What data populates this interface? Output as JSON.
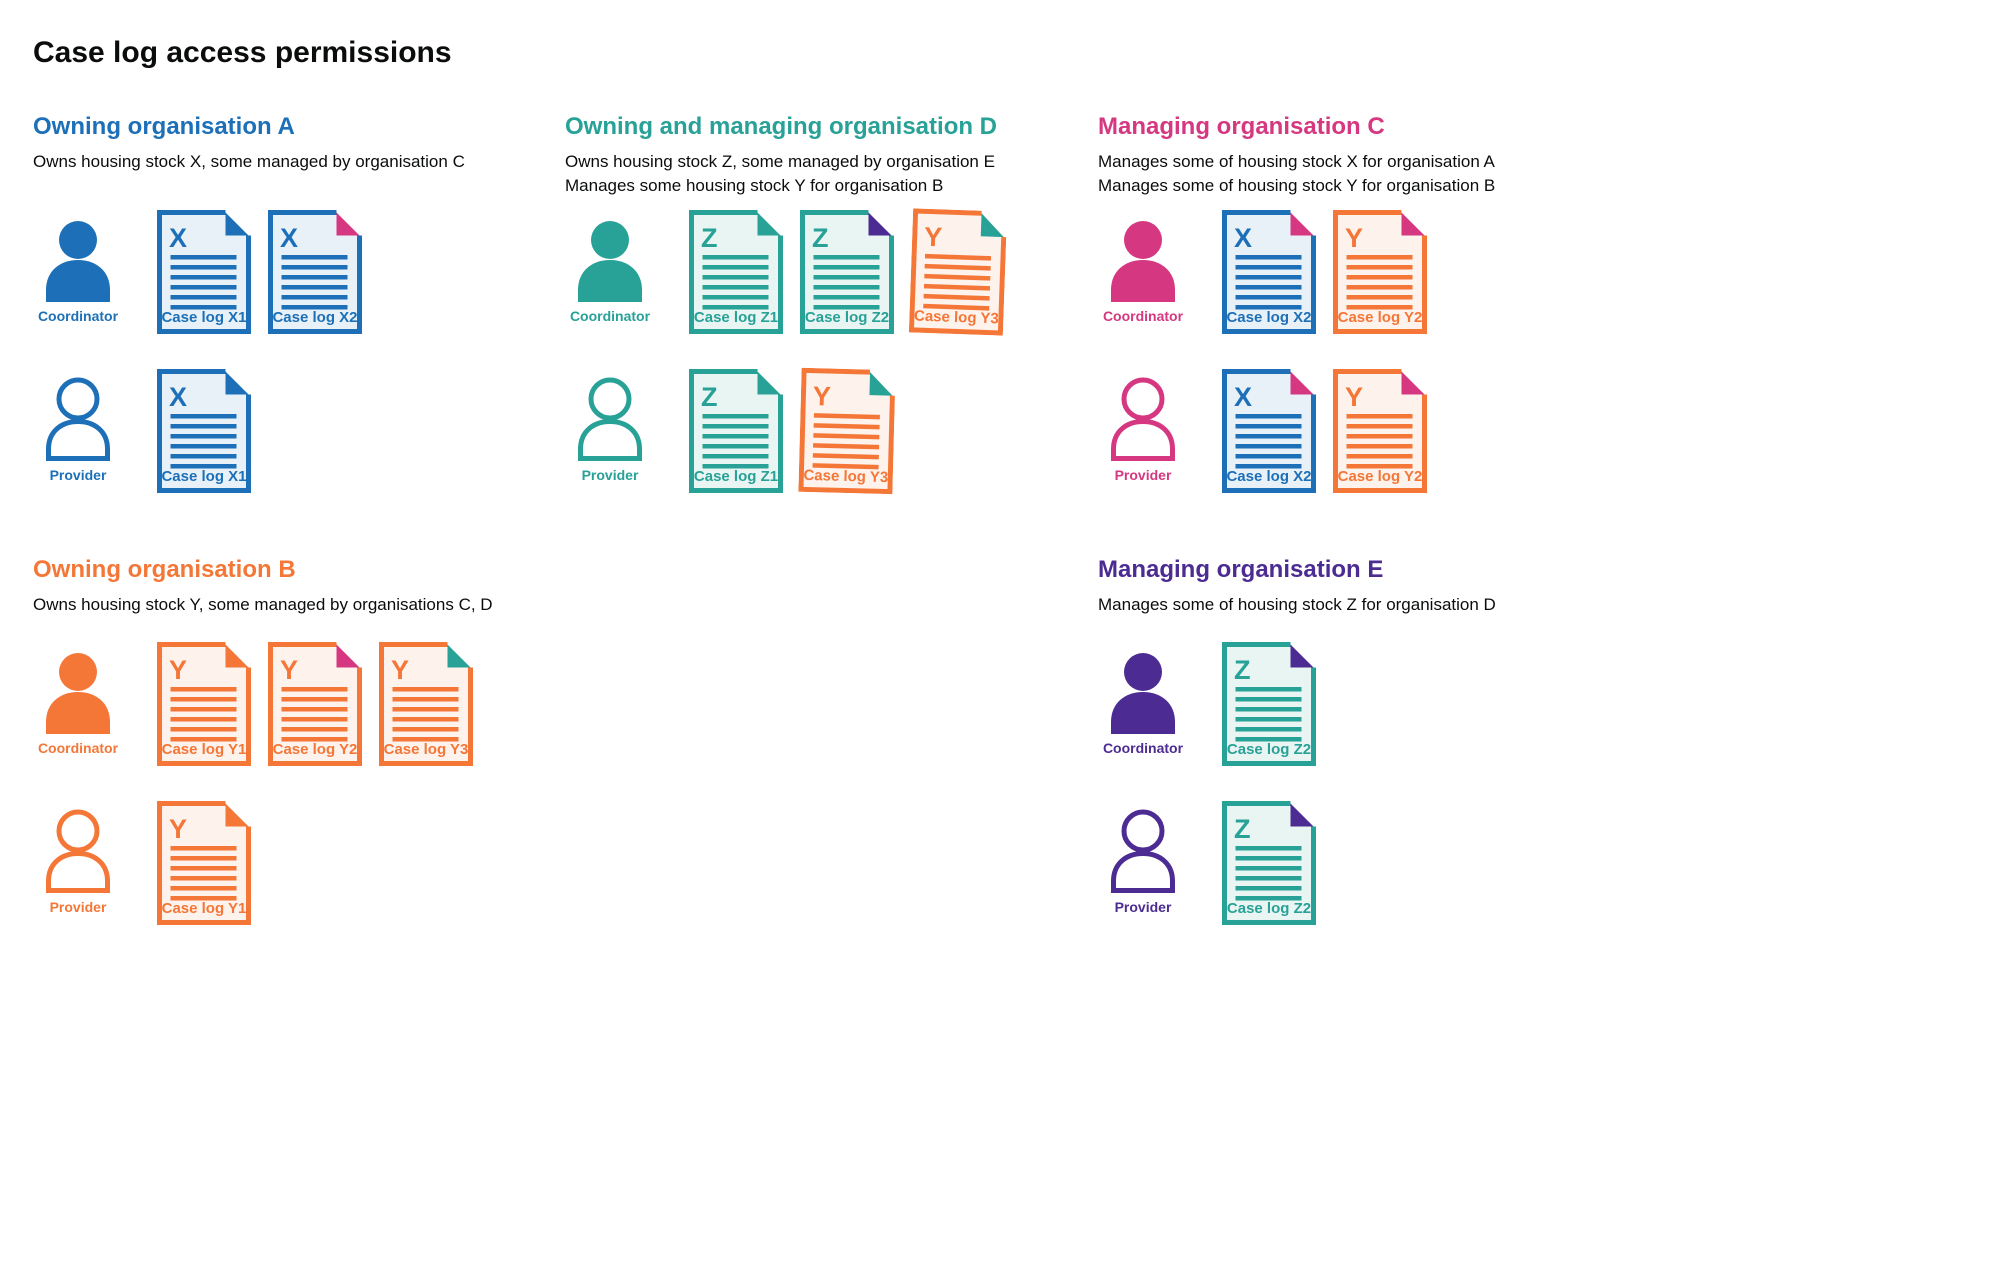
{
  "title": "Case log access permissions",
  "palette": {
    "blue": {
      "main": "#1d70b8",
      "light": "#e8f1f8"
    },
    "teal": {
      "main": "#28a197",
      "light": "#e9f5f3"
    },
    "orange": {
      "main": "#f47738",
      "light": "#fdf2ec"
    },
    "pink": {
      "main": "#d53880",
      "light": "#fbebf2"
    },
    "purple": {
      "main": "#4c2c92",
      "light": "#ece9f4"
    }
  },
  "sections": [
    {
      "id": "owning-organisation-a",
      "heading": "Owning organisation A",
      "color": "blue",
      "grid": {
        "col": 1,
        "row": 1
      },
      "description": [
        "Owns housing stock X, some managed by organisation C"
      ],
      "rows": [
        {
          "role": "Coordinator",
          "person": "filled",
          "docs": [
            {
              "letter": "X",
              "label": "Case log X1",
              "color": "blue",
              "fold": "blue"
            },
            {
              "letter": "X",
              "label": "Case log X2",
              "color": "blue",
              "fold": "pink"
            }
          ]
        },
        {
          "role": "Provider",
          "person": "outline",
          "docs": [
            {
              "letter": "X",
              "label": "Case log X1",
              "color": "blue",
              "fold": "blue"
            }
          ]
        }
      ]
    },
    {
      "id": "owning-and-managing-organisation-d",
      "heading": "Owning and managing organisation D",
      "color": "teal",
      "grid": {
        "col": 2,
        "row": 1
      },
      "description": [
        "Owns housing stock Z, some managed by organisation E",
        "Manages some housing stock Y for organisation B"
      ],
      "rows": [
        {
          "role": "Coordinator",
          "person": "filled",
          "docs": [
            {
              "letter": "Z",
              "label": "Case log Z1",
              "color": "teal",
              "fold": "teal"
            },
            {
              "letter": "Z",
              "label": "Case log Z2",
              "color": "teal",
              "fold": "purple"
            },
            {
              "letter": "Y",
              "label": "Case log Y3",
              "color": "orange",
              "fold": "teal",
              "tilt": 2
            }
          ]
        },
        {
          "role": "Provider",
          "person": "outline",
          "docs": [
            {
              "letter": "Z",
              "label": "Case log Z1",
              "color": "teal",
              "fold": "teal"
            },
            {
              "letter": "Y",
              "label": "Case log Y3",
              "color": "orange",
              "fold": "teal",
              "tilt": 1.5
            }
          ]
        }
      ]
    },
    {
      "id": "managing-organisation-c",
      "heading": "Managing organisation C",
      "color": "pink",
      "grid": {
        "col": 3,
        "row": 1
      },
      "description": [
        "Manages some of housing stock X for organisation A",
        "Manages some of housing stock Y for organisation B"
      ],
      "rows": [
        {
          "role": "Coordinator",
          "person": "filled",
          "docs": [
            {
              "letter": "X",
              "label": "Case log X2",
              "color": "blue",
              "fold": "pink"
            },
            {
              "letter": "Y",
              "label": "Case log Y2",
              "color": "orange",
              "fold": "pink"
            }
          ]
        },
        {
          "role": "Provider",
          "person": "outline",
          "docs": [
            {
              "letter": "X",
              "label": "Case log X2",
              "color": "blue",
              "fold": "pink"
            },
            {
              "letter": "Y",
              "label": "Case log Y2",
              "color": "orange",
              "fold": "pink"
            }
          ]
        }
      ]
    },
    {
      "id": "owning-organisation-b",
      "heading": "Owning organisation B",
      "color": "orange",
      "grid": {
        "col": 1,
        "row": 2
      },
      "description": [
        "Owns housing stock Y, some managed by organisations C, D"
      ],
      "rows": [
        {
          "role": "Coordinator",
          "person": "filled",
          "docs": [
            {
              "letter": "Y",
              "label": "Case log Y1",
              "color": "orange",
              "fold": "orange"
            },
            {
              "letter": "Y",
              "label": "Case log Y2",
              "color": "orange",
              "fold": "pink"
            },
            {
              "letter": "Y",
              "label": "Case log Y3",
              "color": "orange",
              "fold": "teal"
            }
          ]
        },
        {
          "role": "Provider",
          "person": "outline",
          "docs": [
            {
              "letter": "Y",
              "label": "Case log Y1",
              "color": "orange",
              "fold": "orange"
            }
          ]
        }
      ]
    },
    {
      "id": "managing-organisation-e",
      "heading": "Managing organisation E",
      "color": "purple",
      "grid": {
        "col": 3,
        "row": 2
      },
      "description": [
        "Manages some of housing stock Z for organisation D"
      ],
      "rows": [
        {
          "role": "Coordinator",
          "person": "filled",
          "docs": [
            {
              "letter": "Z",
              "label": "Case log Z2",
              "color": "teal",
              "fold": "purple"
            }
          ]
        },
        {
          "role": "Provider",
          "person": "outline",
          "docs": [
            {
              "letter": "Z",
              "label": "Case log Z2",
              "color": "teal",
              "fold": "purple"
            }
          ]
        }
      ]
    }
  ]
}
